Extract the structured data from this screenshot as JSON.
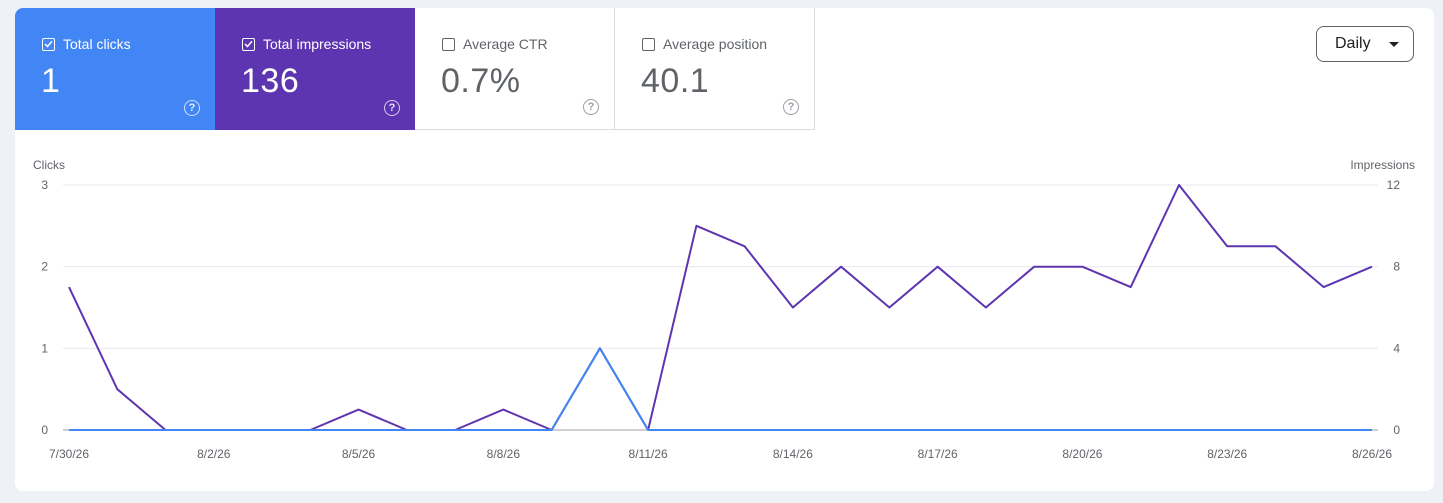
{
  "metrics": {
    "clicks": {
      "label": "Total clicks",
      "value": "1",
      "checked": true,
      "color": "#4285f4"
    },
    "impressions": {
      "label": "Total impressions",
      "value": "136",
      "checked": true,
      "color": "#5e35b1"
    },
    "ctr": {
      "label": "Average CTR",
      "value": "0.7%",
      "checked": false
    },
    "position": {
      "label": "Average position",
      "value": "40.1",
      "checked": false
    }
  },
  "granularity": {
    "selected": "Daily"
  },
  "chart_data": {
    "type": "line",
    "x": [
      "7/30/26",
      "7/31/26",
      "8/1/26",
      "8/2/26",
      "8/3/26",
      "8/4/26",
      "8/5/26",
      "8/6/26",
      "8/7/26",
      "8/8/26",
      "8/9/26",
      "8/10/26",
      "8/11/26",
      "8/12/26",
      "8/13/26",
      "8/14/26",
      "8/15/26",
      "8/16/26",
      "8/17/26",
      "8/18/26",
      "8/19/26",
      "8/20/26",
      "8/21/26",
      "8/22/26",
      "8/23/26",
      "8/24/26",
      "8/25/26",
      "8/26/26"
    ],
    "x_tick_labels": [
      "7/30/26",
      "8/2/26",
      "8/5/26",
      "8/8/26",
      "8/11/26",
      "8/14/26",
      "8/17/26",
      "8/20/26",
      "8/23/26",
      "8/26/26"
    ],
    "y_left": {
      "label": "Clicks",
      "ticks": [
        "0",
        "1",
        "2",
        "3"
      ],
      "range": [
        0,
        3
      ]
    },
    "y_right": {
      "label": "Impressions",
      "ticks": [
        "0",
        "4",
        "8",
        "12"
      ],
      "range": [
        0,
        12
      ]
    },
    "series": [
      {
        "key": "clicks",
        "axis": "left",
        "color": "#4285f4",
        "values": [
          0,
          0,
          0,
          0,
          0,
          0,
          0,
          0,
          0,
          0,
          0,
          1,
          0,
          0,
          0,
          0,
          0,
          0,
          0,
          0,
          0,
          0,
          0,
          0,
          0,
          0,
          0,
          0
        ]
      },
      {
        "key": "impressions",
        "axis": "right",
        "color": "#5e35b1",
        "values": [
          7,
          2,
          0,
          0,
          0,
          0,
          1,
          0,
          0,
          1,
          0,
          4,
          0,
          10,
          9,
          6,
          8,
          6,
          8,
          6,
          8,
          8,
          7,
          12,
          9,
          9,
          7,
          8
        ]
      }
    ],
    "grid": true
  }
}
